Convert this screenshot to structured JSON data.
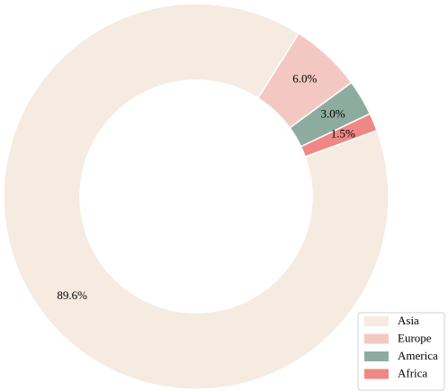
{
  "chart_data": {
    "type": "pie",
    "style": "donut",
    "categories": [
      "Asia",
      "Europe",
      "America",
      "Africa"
    ],
    "values": [
      89.6,
      6.0,
      3.0,
      1.5
    ],
    "value_labels": [
      "89.6%",
      "6.0%",
      "3.0%",
      "1.5%"
    ],
    "colors": [
      "#f5ebe1",
      "#f4c8c2",
      "#8eaba0",
      "#ef8885"
    ],
    "title": "",
    "legend": {
      "position": "bottom-right",
      "entries": [
        "Asia",
        "Europe",
        "America",
        "Africa"
      ]
    }
  }
}
